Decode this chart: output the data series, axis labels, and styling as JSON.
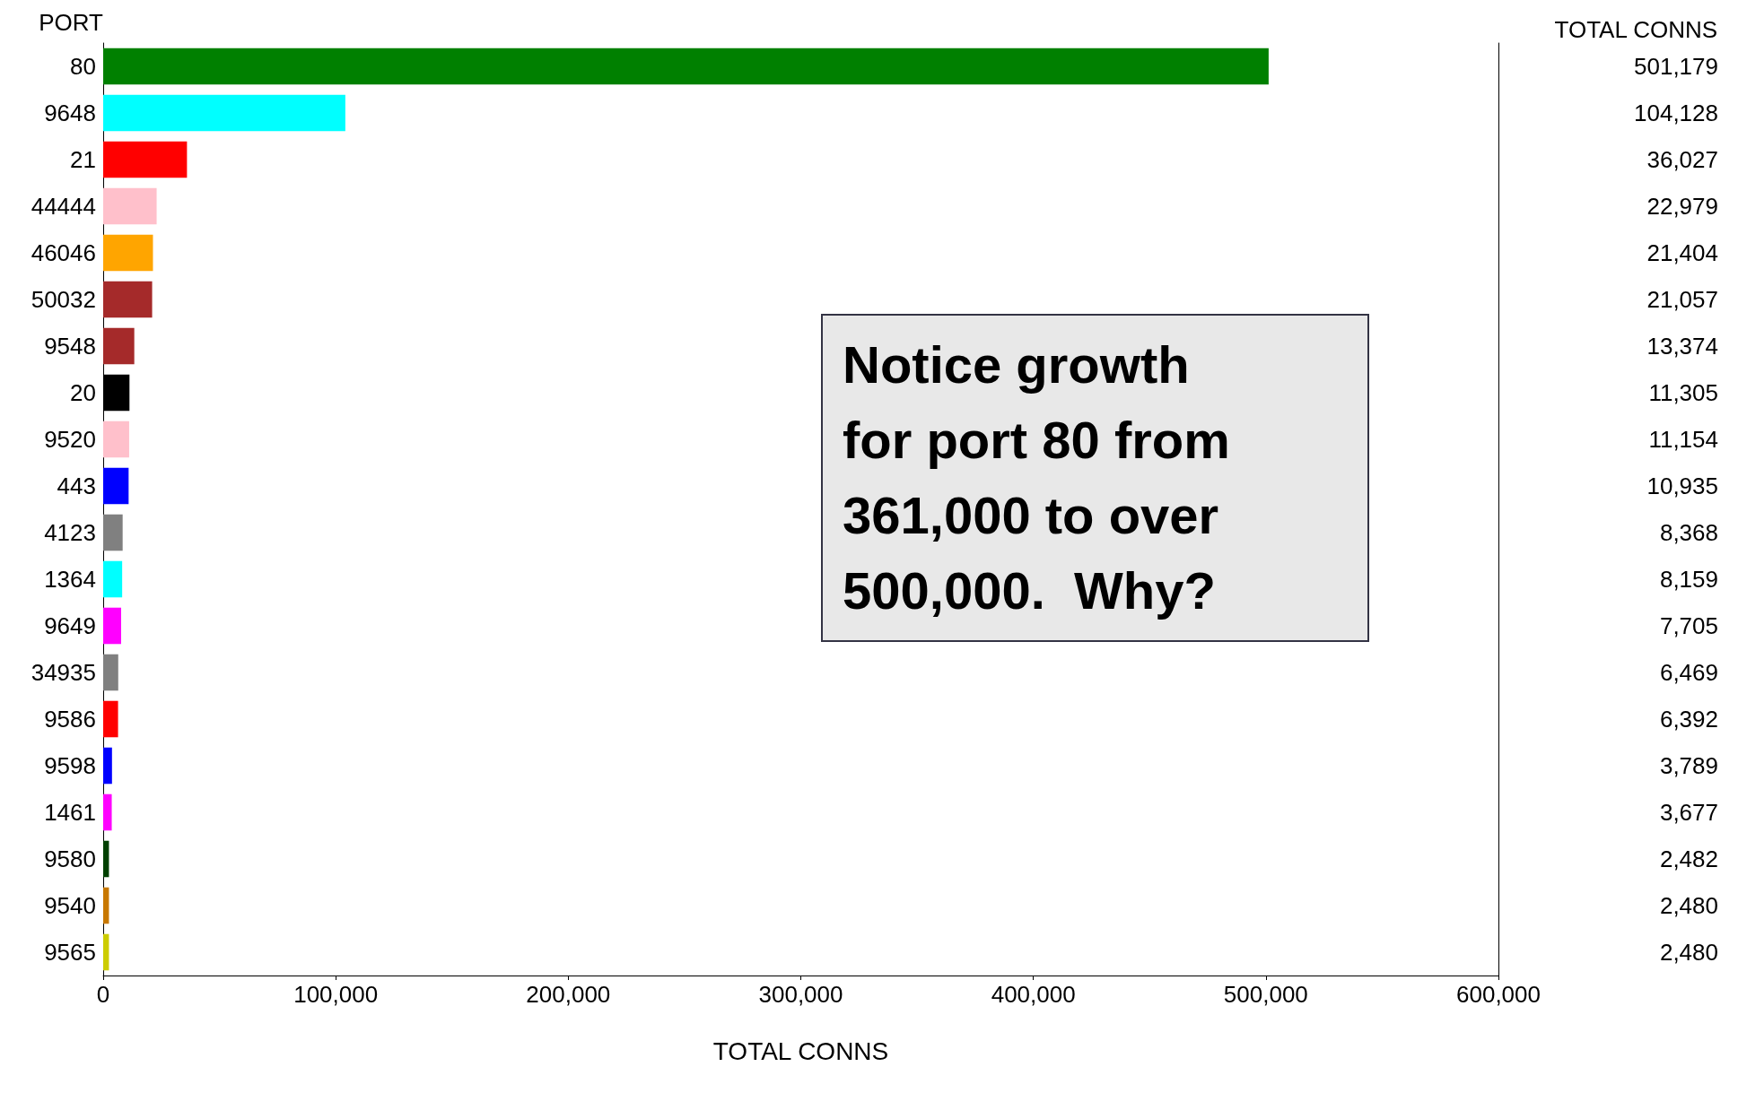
{
  "chart_data": {
    "type": "bar",
    "orientation": "horizontal",
    "ylabel": "PORT",
    "xlabel": "TOTAL CONNS",
    "categories": [
      "80",
      "9648",
      "21",
      "44444",
      "46046",
      "50032",
      "9548",
      "20",
      "9520",
      "443",
      "4123",
      "1364",
      "9649",
      "34935",
      "9586",
      "9598",
      "1461",
      "9580",
      "9540",
      "9565"
    ],
    "values": [
      501179,
      104128,
      36027,
      22979,
      21404,
      21057,
      13374,
      11305,
      11154,
      10935,
      8368,
      8159,
      7705,
      6469,
      6392,
      3789,
      3677,
      2482,
      2480,
      2480
    ],
    "value_labels": [
      "501,179",
      "104,128",
      "36,027",
      "22,979",
      "21,404",
      "21,057",
      "13,374",
      "11,305",
      "11,154",
      "10,935",
      "8,368",
      "8,159",
      "7,705",
      "6,469",
      "6,392",
      "3,789",
      "3,677",
      "2,482",
      "2,480",
      "2,480"
    ],
    "colors": [
      "#008000",
      "#00ffff",
      "#ff0000",
      "#ffc0cb",
      "#ffa500",
      "#a52a2a",
      "#a52a2a",
      "#000000",
      "#ffc0cb",
      "#0000ff",
      "#808080",
      "#00ffff",
      "#ff00ff",
      "#808080",
      "#ff0000",
      "#0000ff",
      "#ff00ff",
      "#004000",
      "#c87800",
      "#cccc00"
    ],
    "xlim": [
      0,
      600000
    ],
    "xticks": [
      {
        "value": 0,
        "label": "0"
      },
      {
        "value": 100000,
        "label": "100,000"
      },
      {
        "value": 200000,
        "label": "200,000"
      },
      {
        "value": 300000,
        "label": "300,000"
      },
      {
        "value": 400000,
        "label": "400,000"
      },
      {
        "value": 500000,
        "label": "500,000"
      },
      {
        "value": 600000,
        "label": "600,000"
      }
    ],
    "grid": false,
    "annotations": [
      "TOTAL CONNS",
      "Notice growth for port 80 from 361,000 to over 500,000.  Why?"
    ]
  }
}
